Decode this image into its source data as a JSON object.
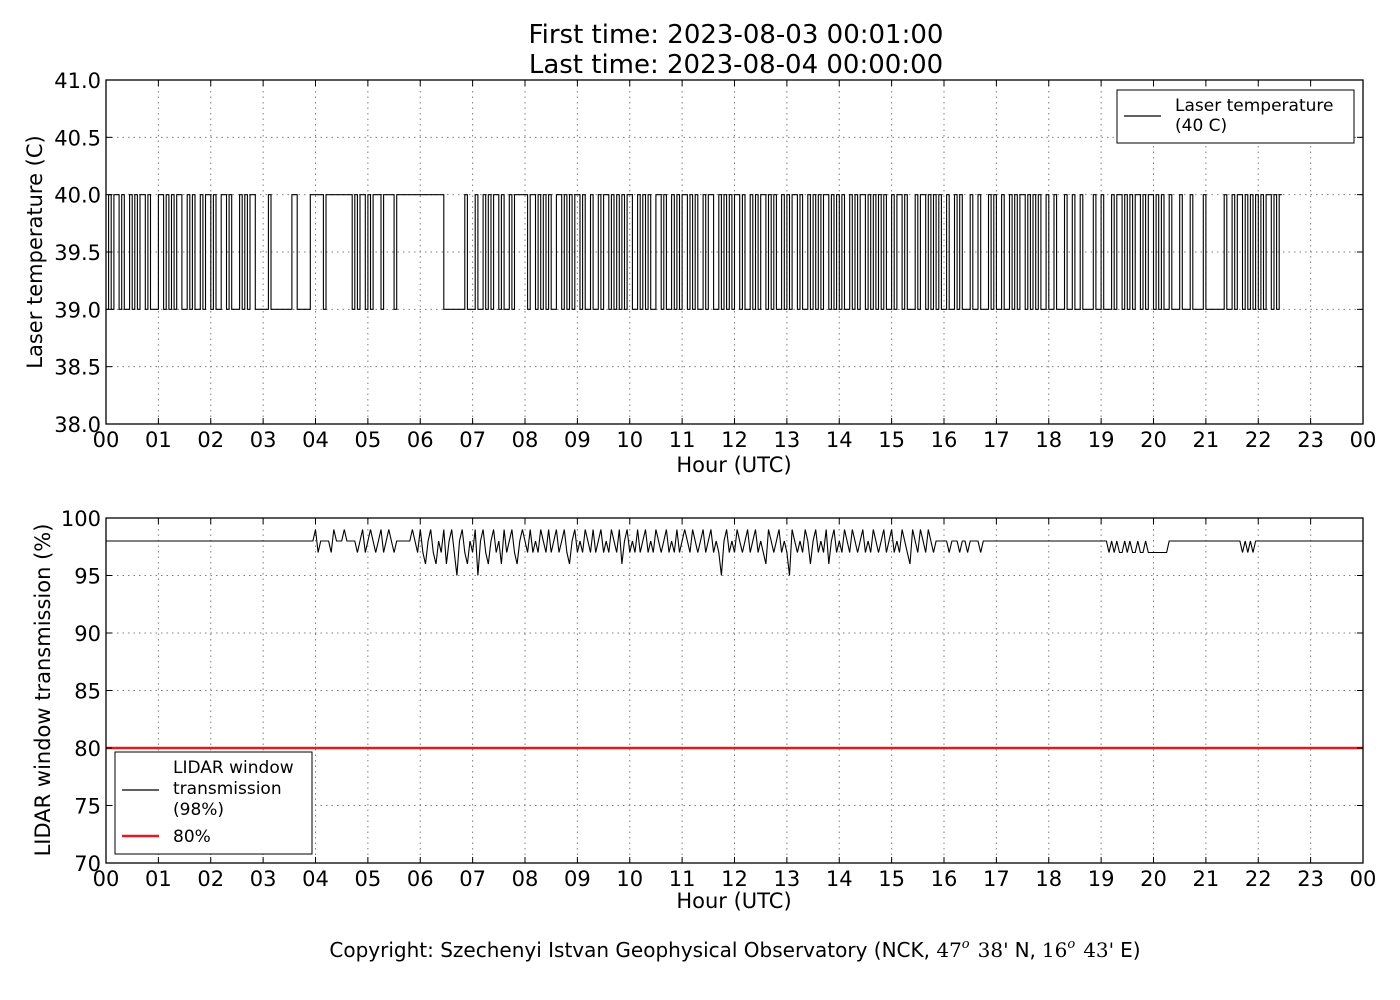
{
  "header": {
    "title_line1": "First time: 2023-08-03 00:01:00",
    "title_line2": "Last time: 2023-08-04 00:00:00"
  },
  "footer": {
    "copyright_text": "Copyright: Szechenyi Istvan Geophysical Observatory (NCK, ",
    "lat_deg": "47",
    "lat_min": "38'",
    "lat_dir": "N,",
    "lon_deg": "16",
    "lon_min": "43'",
    "lon_dir": "E)",
    "degree_symbol": "o"
  },
  "colors": {
    "series_line": "#000000",
    "threshold_line": "#e41a1c"
  },
  "chart_data": [
    {
      "type": "line",
      "xlabel": "Hour (UTC)",
      "ylabel": "Laser temperature (C)",
      "xlim": [
        0,
        24
      ],
      "ylim": [
        38.0,
        41.0
      ],
      "x_ticks": [
        "00",
        "01",
        "02",
        "03",
        "04",
        "05",
        "06",
        "07",
        "08",
        "09",
        "10",
        "11",
        "12",
        "13",
        "14",
        "15",
        "16",
        "17",
        "18",
        "19",
        "20",
        "21",
        "22",
        "23",
        "00"
      ],
      "y_ticks": [
        "38.0",
        "38.5",
        "39.0",
        "39.5",
        "40.0",
        "40.5",
        "41.0"
      ],
      "grid": true,
      "legend_position": "top-right",
      "legend": [
        "Laser temperature",
        "(40 C)"
      ],
      "series": [
        {
          "values_description": "step series alternating between 39.0 and 40.0",
          "levels": [
            39.0,
            40.0
          ],
          "x_step_hours": 0.05,
          "pattern": [
            0,
            1,
            0,
            1,
            1,
            0,
            1,
            0,
            0,
            1,
            0,
            1,
            0,
            1,
            1,
            0,
            1,
            0,
            0,
            0,
            1,
            1,
            0,
            1,
            0,
            1,
            0,
            1,
            1,
            0,
            0,
            1,
            0,
            1,
            0,
            0,
            1,
            0,
            1,
            1,
            0,
            1,
            0,
            0,
            1,
            1,
            0,
            1,
            0,
            0,
            0,
            1,
            0,
            1,
            0,
            1,
            1,
            0,
            0,
            0,
            0,
            0,
            1,
            0,
            0,
            0,
            0,
            0,
            0,
            0,
            0,
            1,
            1,
            0,
            0,
            0,
            0,
            0,
            1,
            1,
            1,
            1,
            1,
            0,
            1,
            1,
            1,
            1,
            1,
            1,
            1,
            1,
            1,
            1,
            0,
            1,
            0,
            1,
            1,
            0,
            1,
            0,
            1,
            1,
            1,
            0,
            1,
            1,
            1,
            1,
            0,
            1,
            1,
            1,
            1,
            1,
            1,
            1,
            1,
            1,
            1,
            1,
            1,
            1,
            1,
            1,
            1,
            1,
            1,
            0,
            0,
            0,
            0,
            0,
            0,
            0,
            0,
            1,
            0,
            0,
            0,
            1,
            0,
            0,
            1,
            0,
            1,
            0,
            1,
            1,
            0,
            1,
            0,
            0,
            1,
            0,
            1,
            1,
            1,
            1,
            1,
            0,
            1,
            1,
            0,
            1,
            0,
            1,
            0,
            1,
            0,
            0,
            1,
            1,
            0,
            1,
            0,
            1,
            0,
            1,
            1,
            0,
            1,
            0,
            0,
            1,
            0,
            0,
            1,
            0,
            1,
            1,
            0,
            1,
            0,
            1,
            0,
            1,
            0,
            1,
            1,
            0,
            0,
            1,
            0,
            1,
            0,
            1,
            0,
            0,
            1,
            1,
            0,
            1,
            0,
            0,
            1,
            0,
            1,
            0,
            1,
            1,
            0,
            1,
            0,
            1,
            0,
            0,
            1,
            0,
            1,
            1,
            0,
            0,
            1,
            0,
            1,
            0,
            1,
            0,
            1,
            1,
            0,
            1,
            0,
            0,
            1,
            0,
            1,
            0,
            1,
            1,
            0,
            1,
            0,
            1,
            0,
            0,
            1,
            0,
            1,
            0,
            1,
            1,
            0,
            1,
            0,
            0,
            1,
            0,
            1,
            0,
            1,
            0,
            1,
            1,
            0,
            1,
            0,
            1,
            0,
            1,
            0,
            0,
            1,
            0,
            1,
            0,
            1,
            1,
            0,
            1,
            0,
            1,
            0,
            1,
            0,
            1,
            0,
            0,
            1,
            0,
            1,
            1,
            0,
            1,
            0,
            0,
            0,
            1,
            0,
            1,
            1,
            0,
            1,
            0,
            1,
            0,
            1,
            0,
            0,
            1,
            0,
            0,
            1,
            0,
            1,
            0,
            0,
            0,
            1,
            0,
            0,
            1,
            0,
            0,
            0,
            1,
            0,
            1,
            0,
            0,
            1,
            0,
            0,
            1,
            0,
            1,
            0,
            1,
            1,
            0,
            1,
            0,
            1,
            0,
            1,
            0,
            0,
            1,
            0,
            0,
            1,
            0,
            0,
            0,
            1,
            0,
            0,
            1,
            0,
            0,
            1,
            0,
            0,
            0,
            0,
            1,
            0,
            0,
            1,
            0,
            0,
            0,
            1,
            0,
            1,
            1,
            0,
            1,
            0,
            1,
            0,
            1,
            1,
            0,
            1,
            0,
            1,
            1,
            0,
            1,
            0,
            1,
            0,
            0,
            1,
            0,
            0,
            0,
            1,
            0,
            0,
            0,
            1,
            0,
            0,
            0,
            0,
            1,
            0,
            0,
            0,
            0,
            0,
            0,
            0,
            1,
            0,
            0,
            1,
            0,
            1,
            1,
            0,
            1,
            0,
            1,
            0,
            1,
            0,
            1,
            0,
            1,
            1,
            0,
            1,
            0,
            1
          ]
        }
      ]
    },
    {
      "type": "line",
      "xlabel": "Hour (UTC)",
      "ylabel": "LIDAR window transmission (%)",
      "xlim": [
        0,
        24
      ],
      "ylim": [
        70,
        100
      ],
      "x_ticks": [
        "00",
        "01",
        "02",
        "03",
        "04",
        "05",
        "06",
        "07",
        "08",
        "09",
        "10",
        "11",
        "12",
        "13",
        "14",
        "15",
        "16",
        "17",
        "18",
        "19",
        "20",
        "21",
        "22",
        "23",
        "00"
      ],
      "y_ticks": [
        "70",
        "75",
        "80",
        "85",
        "90",
        "95",
        "100"
      ],
      "grid": true,
      "legend_position": "bottom-left",
      "legend": [
        "LIDAR window",
        "transmission",
        "(98%)",
        "80%"
      ],
      "series": [
        {
          "name": "LIDAR window transmission (98%)",
          "x_step_hours": 0.05,
          "values": [
            98,
            98,
            98,
            98,
            98,
            98,
            98,
            98,
            98,
            98,
            98,
            98,
            98,
            98,
            98,
            98,
            98,
            98,
            98,
            98,
            98,
            98,
            98,
            98,
            98,
            98,
            98,
            98,
            98,
            98,
            98,
            98,
            98,
            98,
            98,
            98,
            98,
            98,
            98,
            98,
            98,
            98,
            98,
            98,
            98,
            98,
            98,
            98,
            98,
            98,
            98,
            98,
            98,
            98,
            98,
            98,
            98,
            98,
            98,
            98,
            98,
            98,
            98,
            98,
            98,
            98,
            98,
            98,
            98,
            98,
            98,
            98,
            98,
            98,
            98,
            98,
            98,
            98,
            98,
            98,
            99,
            97,
            98,
            98,
            98,
            98,
            97,
            99,
            98,
            98,
            98,
            99,
            98,
            98,
            98,
            98,
            97,
            98,
            99,
            97,
            98,
            99,
            98,
            97,
            98,
            99,
            97,
            98,
            99,
            98,
            97,
            98,
            98,
            98,
            98,
            98,
            98,
            99,
            98,
            97,
            99,
            97,
            96,
            98,
            99,
            97,
            96,
            98,
            97,
            99,
            96,
            98,
            99,
            97,
            95,
            98,
            99,
            97,
            96,
            98,
            97,
            99,
            95,
            98,
            99,
            97,
            96,
            98,
            99,
            97,
            98,
            96,
            99,
            97,
            98,
            99,
            97,
            96,
            98,
            99,
            98,
            97,
            99,
            97,
            98,
            97,
            99,
            98,
            97,
            99,
            97,
            98,
            99,
            97,
            98,
            99,
            97,
            96,
            98,
            99,
            97,
            98,
            97,
            99,
            98,
            97,
            99,
            97,
            98,
            99,
            97,
            98,
            97,
            99,
            98,
            97,
            99,
            96,
            98,
            99,
            97,
            98,
            97,
            99,
            97,
            98,
            99,
            97,
            98,
            97,
            99,
            98,
            97,
            98,
            99,
            97,
            98,
            97,
            99,
            97,
            98,
            99,
            98,
            97,
            99,
            98,
            97,
            98,
            99,
            97,
            98,
            99,
            97,
            98,
            97,
            95,
            98,
            99,
            97,
            98,
            97,
            99,
            98,
            97,
            98,
            99,
            97,
            98,
            99,
            97,
            98,
            97,
            96,
            99,
            98,
            97,
            98,
            99,
            97,
            98,
            97,
            95,
            99,
            98,
            97,
            98,
            97,
            99,
            98,
            96,
            98,
            99,
            97,
            98,
            97,
            99,
            96,
            98,
            99,
            97,
            98,
            97,
            99,
            98,
            97,
            99,
            98,
            97,
            98,
            99,
            97,
            98,
            97,
            99,
            98,
            97,
            98,
            99,
            97,
            98,
            99,
            97,
            98,
            97,
            99,
            98,
            97,
            96,
            99,
            98,
            97,
            99,
            98,
            97,
            99,
            98,
            97,
            98,
            98,
            98,
            98,
            98,
            97,
            98,
            98,
            98,
            97,
            98,
            98,
            97,
            98,
            98,
            98,
            98,
            97,
            98,
            98,
            98,
            98,
            98,
            98,
            98,
            98,
            98,
            98,
            98,
            98,
            98,
            98,
            98,
            98,
            98,
            98,
            98,
            98,
            98,
            98,
            98,
            98,
            98,
            98,
            98,
            98,
            98,
            98,
            98,
            98,
            98,
            98,
            98,
            98,
            98,
            98,
            98,
            98,
            98,
            98,
            98,
            98,
            98,
            98,
            98,
            98,
            97,
            98,
            97,
            98,
            97,
            97,
            98,
            97,
            98,
            97,
            97,
            98,
            97,
            97,
            98,
            97,
            97,
            97,
            97,
            97,
            97,
            97,
            97,
            98,
            98,
            98,
            98,
            98,
            98,
            98,
            98,
            98,
            98,
            98,
            98,
            98,
            98,
            98,
            98,
            98,
            98,
            98,
            98,
            98,
            98,
            98,
            98,
            98,
            98,
            98,
            98,
            97,
            98,
            97,
            98,
            97,
            98,
            98,
            98,
            98,
            98,
            98,
            98,
            98,
            98
          ]
        },
        {
          "name": "80%",
          "constant": 80
        }
      ]
    }
  ]
}
